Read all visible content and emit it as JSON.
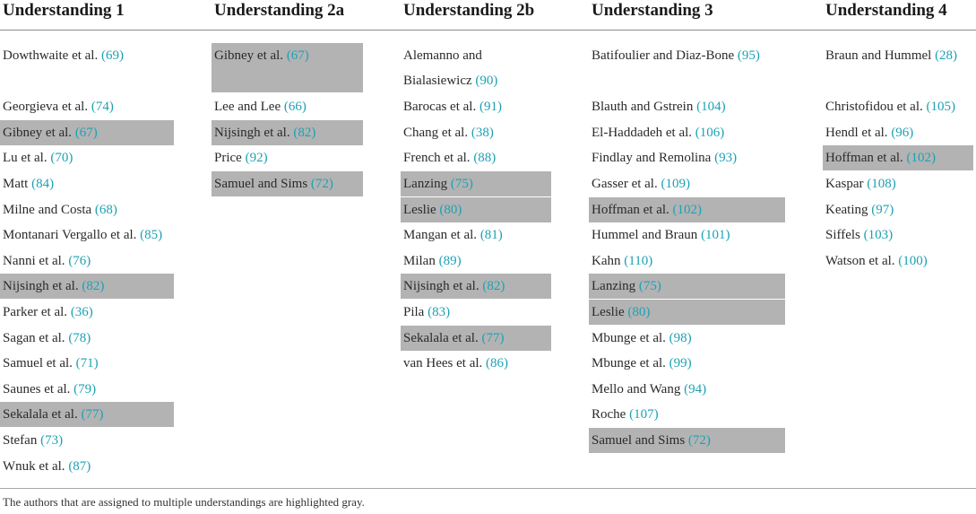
{
  "headers": [
    "Understanding 1",
    "Understanding 2a",
    "Understanding 2b",
    "Understanding 3",
    "Understanding 4"
  ],
  "columns": [
    [
      {
        "author": "Dowthwaite et al.",
        "ref": "(69)",
        "highlight": false
      },
      null,
      {
        "author": "Georgieva et al.",
        "ref": "(74)",
        "highlight": false
      },
      {
        "author": "Gibney et al.",
        "ref": "(67)",
        "highlight": true
      },
      {
        "author": "Lu et al.",
        "ref": "(70)",
        "highlight": false
      },
      {
        "author": "Matt",
        "ref": "(84)",
        "highlight": false
      },
      {
        "author": "Milne and Costa",
        "ref": "(68)",
        "highlight": false
      },
      {
        "author": "Montanari Vergallo et al.",
        "ref": "(85)",
        "highlight": false
      },
      {
        "author": "Nanni et al.",
        "ref": "(76)",
        "highlight": false
      },
      {
        "author": "Nijsingh et al.",
        "ref": "(82)",
        "highlight": true
      },
      {
        "author": "Parker et al.",
        "ref": "(36)",
        "highlight": false
      },
      {
        "author": "Sagan et al.",
        "ref": "(78)",
        "highlight": false
      },
      {
        "author": "Samuel et al.",
        "ref": "(71)",
        "highlight": false
      },
      {
        "author": "Saunes et al.",
        "ref": "(79)",
        "highlight": false
      },
      {
        "author": "Sekalala et al.",
        "ref": "(77)",
        "highlight": true
      },
      {
        "author": "Stefan",
        "ref": "(73)",
        "highlight": false
      },
      {
        "author": "Wnuk et al.",
        "ref": "(87)",
        "highlight": false
      }
    ],
    [
      {
        "author": "Gibney et al.",
        "ref": "(67)",
        "highlight": true,
        "tall": true
      },
      null,
      {
        "author": "Lee and Lee",
        "ref": "(66)",
        "highlight": false
      },
      {
        "author": "Nijsingh et al.",
        "ref": "(82)",
        "highlight": true
      },
      {
        "author": "Price",
        "ref": "(92)",
        "highlight": false
      },
      {
        "author": "Samuel and Sims",
        "ref": "(72)",
        "highlight": true
      }
    ],
    [
      {
        "author": "Alemanno and Bialasiewicz",
        "ref": "(90)",
        "highlight": false,
        "wrap": true
      },
      null,
      {
        "author": "Barocas et al.",
        "ref": "(91)",
        "highlight": false
      },
      {
        "author": "Chang et al.",
        "ref": "(38)",
        "highlight": false
      },
      {
        "author": "French et al.",
        "ref": "(88)",
        "highlight": false
      },
      {
        "author": "Lanzing",
        "ref": "(75)",
        "highlight": true
      },
      {
        "author": "Leslie",
        "ref": "(80)",
        "highlight": true
      },
      {
        "author": "Mangan et al.",
        "ref": "(81)",
        "highlight": false
      },
      {
        "author": "Milan",
        "ref": "(89)",
        "highlight": false
      },
      {
        "author": "Nijsingh et al.",
        "ref": "(82)",
        "highlight": true
      },
      {
        "author": "Pila",
        "ref": "(83)",
        "highlight": false
      },
      {
        "author": "Sekalala et al.",
        "ref": "(77)",
        "highlight": true
      },
      {
        "author": "van Hees et al.",
        "ref": "(86)",
        "highlight": false
      }
    ],
    [
      {
        "author": "Batifoulier and Diaz-Bone",
        "ref": "(95)",
        "highlight": false
      },
      null,
      {
        "author": "Blauth and Gstrein",
        "ref": "(104)",
        "highlight": false
      },
      {
        "author": "El-Haddadeh et al.",
        "ref": "(106)",
        "highlight": false
      },
      {
        "author": "Findlay and Remolina",
        "ref": "(93)",
        "highlight": false
      },
      {
        "author": "Gasser et al.",
        "ref": "(109)",
        "highlight": false
      },
      {
        "author": "Hoffman et al.",
        "ref": "(102)",
        "highlight": true
      },
      {
        "author": "Hummel and Braun",
        "ref": "(101)",
        "highlight": false
      },
      {
        "author": "Kahn",
        "ref": "(110)",
        "highlight": false
      },
      {
        "author": "Lanzing",
        "ref": "(75)",
        "highlight": true
      },
      {
        "author": "Leslie",
        "ref": "(80)",
        "highlight": true
      },
      {
        "author": "Mbunge et al.",
        "ref": "(98)",
        "highlight": false
      },
      {
        "author": "Mbunge et al.",
        "ref": "(99)",
        "highlight": false
      },
      {
        "author": "Mello and Wang",
        "ref": "(94)",
        "highlight": false
      },
      {
        "author": "Roche",
        "ref": "(107)",
        "highlight": false
      },
      {
        "author": "Samuel and Sims",
        "ref": "(72)",
        "highlight": true
      }
    ],
    [
      {
        "author": "Braun and Hummel",
        "ref": "(28)",
        "highlight": false
      },
      null,
      {
        "author": "Christofidou et al.",
        "ref": "(105)",
        "highlight": false
      },
      {
        "author": "Hendl et al.",
        "ref": "(96)",
        "highlight": false
      },
      {
        "author": "Hoffman et al.",
        "ref": "(102)",
        "highlight": true
      },
      {
        "author": "Kaspar",
        "ref": "(108)",
        "highlight": false
      },
      {
        "author": "Keating",
        "ref": "(97)",
        "highlight": false
      },
      {
        "author": "Siffels",
        "ref": "(103)",
        "highlight": false
      },
      {
        "author": "Watson et al.",
        "ref": "(100)",
        "highlight": false
      }
    ]
  ],
  "footnote": "The authors that are assigned to multiple understandings are highlighted gray.",
  "colors": {
    "highlight": "#b3b3b3",
    "reference": "#1da1b4",
    "rule": "#8c8c8c"
  }
}
